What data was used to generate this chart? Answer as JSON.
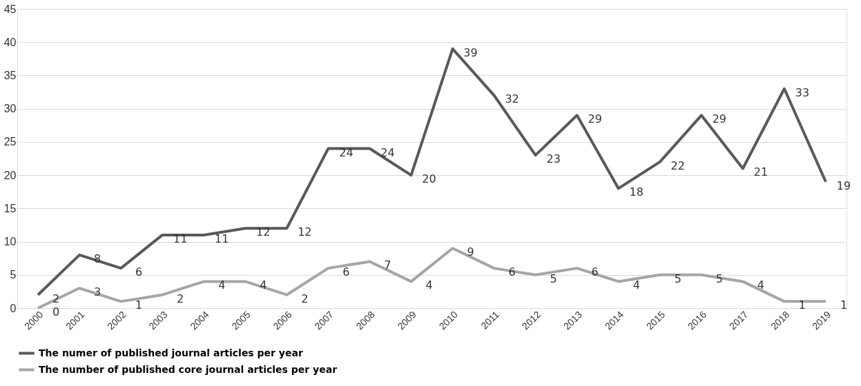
{
  "chart_data": {
    "type": "line",
    "categories": [
      "2000",
      "2001",
      "2002",
      "2003",
      "2004",
      "2005",
      "2006",
      "2007",
      "2008",
      "2009",
      "2010",
      "2011",
      "2012",
      "2013",
      "2014",
      "2015",
      "2016",
      "2017",
      "2018",
      "2019"
    ],
    "series": [
      {
        "name": "The numer of published journal articles per year",
        "color": "#595959",
        "values": [
          2,
          8,
          6,
          11,
          11,
          12,
          12,
          24,
          24,
          20,
          39,
          32,
          23,
          29,
          18,
          22,
          29,
          21,
          33,
          19
        ]
      },
      {
        "name": "The number of published core journal articles per year",
        "color": "#a5a5a5",
        "values": [
          0,
          3,
          1,
          2,
          4,
          4,
          2,
          6,
          7,
          4,
          9,
          6,
          5,
          6,
          4,
          5,
          5,
          4,
          1,
          1
        ]
      }
    ],
    "ylim": [
      0,
      45
    ],
    "yticks": [
      0,
      5,
      10,
      15,
      20,
      25,
      30,
      35,
      40,
      45
    ],
    "grid": "y",
    "legend": "bottom",
    "data_labels": true,
    "marker": "none",
    "line_style": "solid"
  }
}
